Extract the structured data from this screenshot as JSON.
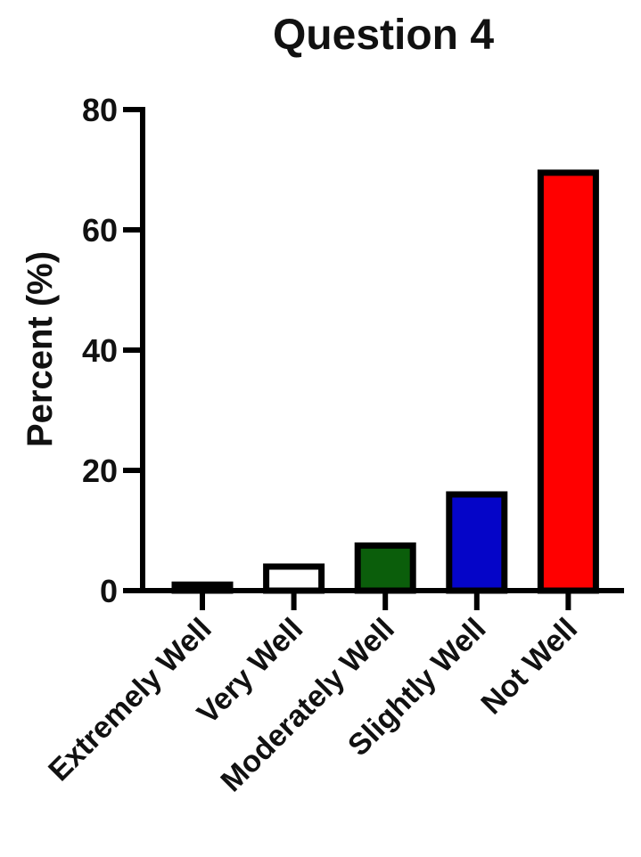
{
  "chart_data": {
    "type": "bar",
    "title": "Question 4",
    "xlabel": "",
    "ylabel": "Percent (%)",
    "categories": [
      "Extremely Well",
      "Very Well",
      "Moderately Well",
      "Slightly Well",
      "Not Well"
    ],
    "values": [
      1,
      4,
      7.5,
      16,
      69.5
    ],
    "colors": [
      "#000000",
      "#ffffff",
      "#0b5e0b",
      "#0505c8",
      "#ff0000"
    ],
    "ylim": [
      0,
      80
    ],
    "yticks": [
      0,
      20,
      40,
      60,
      80
    ],
    "grid": false,
    "legend": "none"
  }
}
